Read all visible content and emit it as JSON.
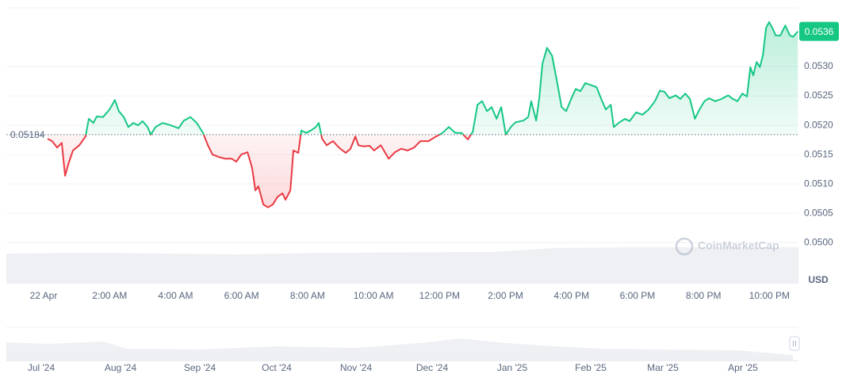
{
  "chart_data": {
    "type": "line",
    "baseline": 0.05184,
    "currency": "USD",
    "watermark": "CoinMarketCap",
    "color_up": "#16c784",
    "color_down": "#ea3943",
    "xlim": [
      -1.13,
      22.88
    ],
    "xticks": [
      {
        "value": 0,
        "label": "22 Apr"
      },
      {
        "value": 2,
        "label": "2:00 AM"
      },
      {
        "value": 4,
        "label": "4:00 AM"
      },
      {
        "value": 6,
        "label": "6:00 AM"
      },
      {
        "value": 8,
        "label": "8:00 AM"
      },
      {
        "value": 10,
        "label": "10:00 AM"
      },
      {
        "value": 12,
        "label": "12:00 PM"
      },
      {
        "value": 14,
        "label": "2:00 PM"
      },
      {
        "value": 16,
        "label": "4:00 PM"
      },
      {
        "value": 18,
        "label": "6:00 PM"
      },
      {
        "value": 20,
        "label": "8:00 PM"
      },
      {
        "value": 22,
        "label": "10:00 PM"
      }
    ],
    "ylim": [
      0.0493,
      0.054
    ],
    "yticks": [
      {
        "value": 0.05,
        "label": "0.0500"
      },
      0.0505,
      {
        "value": 0.051,
        "label": "0.0510"
      },
      0.0515,
      {
        "value": 0.052,
        "label": "0.0520"
      },
      0.0525,
      {
        "value": 0.053,
        "label": "0.0530"
      }
    ],
    "grid": true,
    "x": [
      0.12,
      0.26,
      0.41,
      0.55,
      0.65,
      0.75,
      0.89,
      1.08,
      1.27,
      1.37,
      1.51,
      1.61,
      1.8,
      2.0,
      2.16,
      2.28,
      2.43,
      2.57,
      2.72,
      2.86,
      3.0,
      3.15,
      3.25,
      3.39,
      3.61,
      3.85,
      4.09,
      4.25,
      4.45,
      4.64,
      4.83,
      4.98,
      5.12,
      5.31,
      5.51,
      5.7,
      5.84,
      5.99,
      6.18,
      6.32,
      6.42,
      6.51,
      6.66,
      6.8,
      6.95,
      7.09,
      7.24,
      7.33,
      7.48,
      7.57,
      7.72,
      7.81,
      7.96,
      8.1,
      8.25,
      8.34,
      8.44,
      8.58,
      8.77,
      8.97,
      9.16,
      9.3,
      9.45,
      9.54,
      9.69,
      9.88,
      10.02,
      10.22,
      10.46,
      10.65,
      10.84,
      11.03,
      11.23,
      11.42,
      11.66,
      11.9,
      12.09,
      12.28,
      12.48,
      12.67,
      12.86,
      13.01,
      13.15,
      13.29,
      13.44,
      13.58,
      13.73,
      13.87,
      14.01,
      14.16,
      14.3,
      14.54,
      14.69,
      14.78,
      14.93,
      15.02,
      15.12,
      15.26,
      15.41,
      15.55,
      15.7,
      15.84,
      15.99,
      16.13,
      16.27,
      16.42,
      16.61,
      16.76,
      16.9,
      17.04,
      17.19,
      17.28,
      17.43,
      17.62,
      17.76,
      17.96,
      18.15,
      18.34,
      18.53,
      18.68,
      18.82,
      18.97,
      19.16,
      19.3,
      19.45,
      19.59,
      19.74,
      19.88,
      20.03,
      20.17,
      20.36,
      20.55,
      20.75,
      20.89,
      21.03,
      21.18,
      21.32,
      21.42,
      21.51,
      21.61,
      21.71,
      21.8,
      21.9,
      21.99,
      22.09,
      22.19,
      22.33,
      22.48,
      22.62,
      22.72,
      22.86
    ],
    "series": [
      {
        "values": [
          0.05177,
          0.05173,
          0.05162,
          0.0517,
          0.05114,
          0.05134,
          0.05157,
          0.05166,
          0.05181,
          0.05211,
          0.05204,
          0.05215,
          0.05214,
          0.05227,
          0.05243,
          0.05224,
          0.05214,
          0.05197,
          0.05204,
          0.052,
          0.05207,
          0.05197,
          0.05184,
          0.05197,
          0.05204,
          0.052,
          0.05195,
          0.05208,
          0.05214,
          0.05204,
          0.05187,
          0.05166,
          0.0515,
          0.05146,
          0.05143,
          0.05143,
          0.05138,
          0.0515,
          0.05154,
          0.05127,
          0.05089,
          0.05096,
          0.05065,
          0.0506,
          0.05065,
          0.05078,
          0.05084,
          0.05073,
          0.05089,
          0.05157,
          0.05153,
          0.05191,
          0.05187,
          0.05191,
          0.05197,
          0.05204,
          0.05177,
          0.05166,
          0.05173,
          0.05161,
          0.05153,
          0.0516,
          0.05181,
          0.05166,
          0.05164,
          0.05165,
          0.05157,
          0.05166,
          0.05143,
          0.05154,
          0.0516,
          0.05157,
          0.05162,
          0.05173,
          0.05173,
          0.05181,
          0.05187,
          0.05197,
          0.05187,
          0.05187,
          0.05176,
          0.05189,
          0.05235,
          0.05241,
          0.05224,
          0.05231,
          0.05211,
          0.05231,
          0.05184,
          0.05197,
          0.05205,
          0.05208,
          0.05214,
          0.05241,
          0.05208,
          0.05245,
          0.05305,
          0.05332,
          0.05319,
          0.05278,
          0.05231,
          0.05224,
          0.05245,
          0.05262,
          0.05258,
          0.05272,
          0.05268,
          0.05265,
          0.05245,
          0.05227,
          0.05235,
          0.05197,
          0.05204,
          0.05211,
          0.05207,
          0.05222,
          0.05218,
          0.05227,
          0.05241,
          0.05259,
          0.05257,
          0.05246,
          0.05251,
          0.05245,
          0.05254,
          0.05245,
          0.05211,
          0.05227,
          0.05241,
          0.05246,
          0.05241,
          0.05245,
          0.05251,
          0.05245,
          0.05241,
          0.05254,
          0.05249,
          0.05299,
          0.05285,
          0.05308,
          0.05299,
          0.05319,
          0.05366,
          0.05376,
          0.05366,
          0.05353,
          0.05353,
          0.0537,
          0.05353,
          0.05351,
          0.0536
        ]
      }
    ],
    "navigator": {
      "labels": [
        "Jul '24",
        "Aug '24",
        "Sep '24",
        "Oct '24",
        "Nov '24",
        "Dec '24",
        "Jan '25",
        "Feb '25",
        "Mar '25",
        "Apr '25"
      ]
    }
  }
}
